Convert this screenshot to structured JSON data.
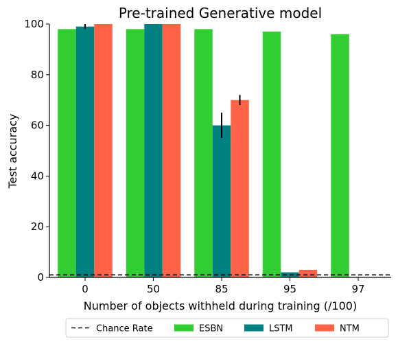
{
  "chart_data": {
    "type": "bar",
    "title": "Pre-trained Generative model",
    "xlabel": "Number of objects withheld during training (/100)",
    "ylabel": "Test accuracy",
    "categories": [
      "0",
      "50",
      "85",
      "95",
      "97"
    ],
    "ylim": [
      0,
      100
    ],
    "yticks": [
      0,
      20,
      40,
      60,
      80,
      100
    ],
    "grid": false,
    "legend_position": "bottom-center",
    "chance_rate": {
      "name": "Chance Rate",
      "value": 1,
      "color": "#000000",
      "style": "dashed"
    },
    "series": [
      {
        "name": "ESBN",
        "color": "#32cd32",
        "values": [
          98,
          98,
          98,
          97,
          96
        ],
        "errors": [
          0,
          0,
          0,
          0,
          0
        ]
      },
      {
        "name": "LSTM",
        "color": "#008080",
        "values": [
          99,
          100,
          60,
          2,
          null
        ],
        "errors": [
          1,
          0,
          5,
          0,
          0
        ]
      },
      {
        "name": "NTM",
        "color": "#ff6347",
        "values": [
          100,
          100,
          70,
          3,
          null
        ],
        "errors": [
          0,
          0,
          2,
          0,
          0
        ]
      }
    ]
  }
}
